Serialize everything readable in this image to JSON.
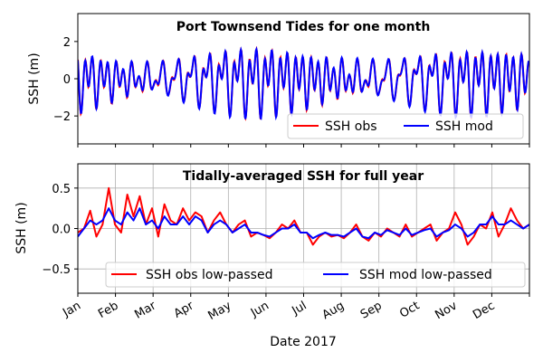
{
  "chart_data": [
    {
      "type": "line",
      "title": "Port Townsend Tides for one month",
      "xlabel": "",
      "ylabel": "SSH (m)",
      "ylim": [
        -3.5,
        3.5
      ],
      "yticks": [
        "2",
        "0",
        "−2"
      ],
      "ytick_values": [
        2,
        0,
        -2
      ],
      "grid": false,
      "legend_position": "lower-right",
      "x_span_days": 30,
      "series": [
        {
          "name": "SSH obs",
          "color": "#ff0000"
        },
        {
          "name": "SSH mod",
          "color": "#0000ff"
        }
      ],
      "tide": {
        "constituents": [
          {
            "amplitude": 0.82,
            "period_hours": 12.42,
            "phase": 0.3
          },
          {
            "amplitude": 0.42,
            "period_hours": 12.0,
            "phase": 1.1
          },
          {
            "amplitude": 0.72,
            "period_hours": 23.93,
            "phase": 2.0
          },
          {
            "amplitude": 0.34,
            "period_hours": 25.82,
            "phase": 0.4
          }
        ],
        "obs_extra_amplitude": 0.06
      }
    },
    {
      "type": "line",
      "title": "Tidally-averaged SSH for full year",
      "xlabel": "Date 2017",
      "ylabel": "SSH (m)",
      "ylim": [
        -0.8,
        0.8
      ],
      "yticks": [
        "0.5",
        "0.0",
        "−0.5"
      ],
      "ytick_values": [
        0.5,
        0.0,
        -0.5
      ],
      "grid": true,
      "legend_position": "bottom-center",
      "x_months": [
        "Jan",
        "Feb",
        "Mar",
        "Apr",
        "May",
        "Jun",
        "Jul",
        "Aug",
        "Sep",
        "Oct",
        "Nov",
        "Dec"
      ],
      "series": [
        {
          "name": "SSH obs low-passed",
          "color": "#ff0000",
          "x": [
            0,
            5,
            10,
            15,
            20,
            25,
            30,
            35,
            40,
            45,
            50,
            55,
            60,
            65,
            70,
            75,
            80,
            85,
            90,
            95,
            100,
            105,
            110,
            115,
            120,
            125,
            130,
            135,
            140,
            145,
            150,
            155,
            160,
            165,
            170,
            175,
            180,
            185,
            190,
            195,
            200,
            205,
            210,
            215,
            220,
            225,
            230,
            235,
            240,
            245,
            250,
            255,
            260,
            265,
            270,
            275,
            280,
            285,
            290,
            295,
            300,
            305,
            310,
            315,
            320,
            325,
            330,
            335,
            340,
            345,
            350,
            355,
            360,
            365
          ],
          "y": [
            -0.05,
            0.0,
            0.22,
            -0.1,
            0.05,
            0.5,
            0.05,
            -0.05,
            0.42,
            0.15,
            0.4,
            0.05,
            0.25,
            -0.1,
            0.3,
            0.1,
            0.05,
            0.25,
            0.1,
            0.2,
            0.15,
            -0.05,
            0.1,
            0.2,
            0.05,
            -0.05,
            0.05,
            0.1,
            -0.1,
            -0.05,
            -0.08,
            -0.12,
            -0.05,
            0.05,
            0.0,
            0.1,
            -0.05,
            -0.05,
            -0.2,
            -0.1,
            -0.05,
            -0.1,
            -0.08,
            -0.12,
            -0.05,
            0.05,
            -0.1,
            -0.15,
            -0.05,
            -0.1,
            0.0,
            -0.05,
            -0.1,
            0.05,
            -0.1,
            -0.05,
            0.0,
            0.05,
            -0.15,
            -0.05,
            0.0,
            0.2,
            0.05,
            -0.2,
            -0.1,
            0.05,
            0.0,
            0.2,
            -0.1,
            0.05,
            0.25,
            0.1,
            0.0,
            0.05
          ]
        },
        {
          "name": "SSH mod low-passed",
          "color": "#0000ff",
          "x": [
            0,
            5,
            10,
            15,
            20,
            25,
            30,
            35,
            40,
            45,
            50,
            55,
            60,
            65,
            70,
            75,
            80,
            85,
            90,
            95,
            100,
            105,
            110,
            115,
            120,
            125,
            130,
            135,
            140,
            145,
            150,
            155,
            160,
            165,
            170,
            175,
            180,
            185,
            190,
            195,
            200,
            205,
            210,
            215,
            220,
            225,
            230,
            235,
            240,
            245,
            250,
            255,
            260,
            265,
            270,
            275,
            280,
            285,
            290,
            295,
            300,
            305,
            310,
            315,
            320,
            325,
            330,
            335,
            340,
            345,
            350,
            355,
            360,
            365
          ],
          "y": [
            -0.1,
            0.0,
            0.1,
            0.05,
            0.1,
            0.25,
            0.1,
            0.05,
            0.2,
            0.1,
            0.25,
            0.05,
            0.1,
            0.0,
            0.15,
            0.05,
            0.05,
            0.15,
            0.05,
            0.15,
            0.1,
            -0.05,
            0.05,
            0.1,
            0.05,
            -0.05,
            0.0,
            0.05,
            -0.05,
            -0.05,
            -0.08,
            -0.1,
            -0.05,
            0.0,
            0.0,
            0.05,
            -0.05,
            -0.05,
            -0.12,
            -0.08,
            -0.05,
            -0.08,
            -0.08,
            -0.1,
            -0.05,
            0.0,
            -0.1,
            -0.12,
            -0.05,
            -0.08,
            -0.02,
            -0.05,
            -0.08,
            0.0,
            -0.08,
            -0.05,
            -0.02,
            0.0,
            -0.1,
            -0.05,
            -0.02,
            0.05,
            0.0,
            -0.1,
            -0.05,
            0.05,
            0.05,
            0.15,
            0.05,
            0.05,
            0.1,
            0.05,
            0.0,
            0.05
          ]
        }
      ]
    }
  ]
}
